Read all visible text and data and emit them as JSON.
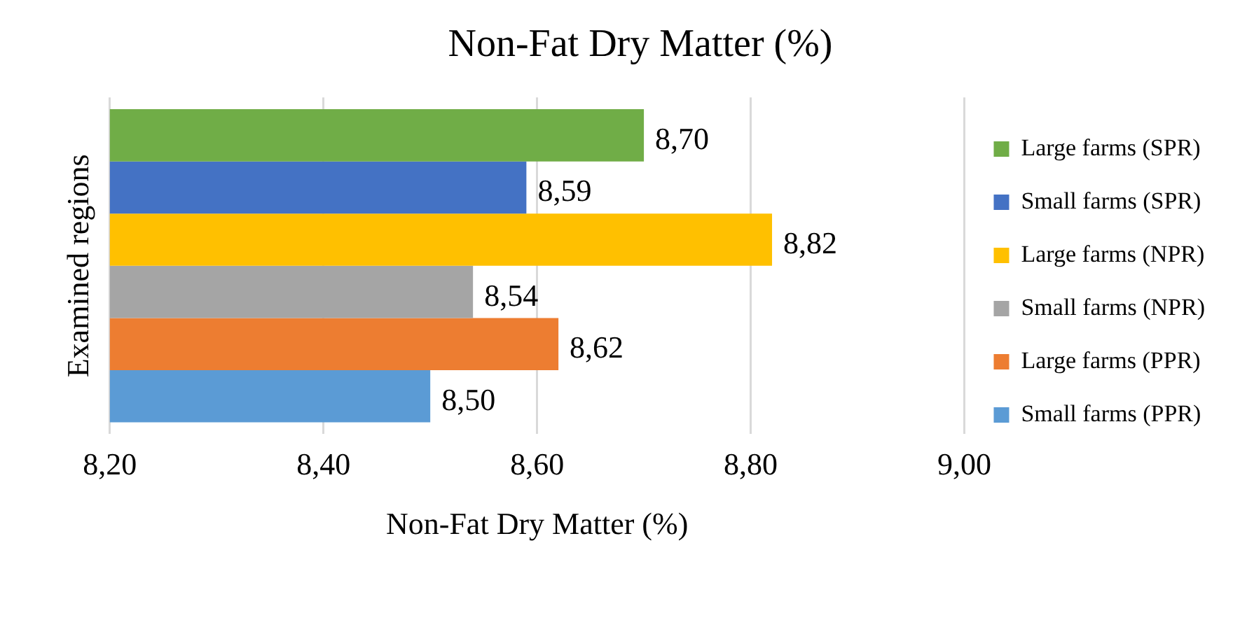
{
  "chart_data": {
    "type": "bar",
    "orientation": "horizontal",
    "title": "Non-Fat Dry Matter (%)",
    "xlabel": "Non-Fat Dry Matter (%)",
    "ylabel": "Examined regions",
    "categories": [
      null
    ],
    "series": [
      {
        "name": "Large farms (SPR)",
        "color": "#70ad47",
        "values": [
          8.7
        ],
        "value_labels": [
          "8,70"
        ]
      },
      {
        "name": "Small farms (SPR)",
        "color": "#4472c4",
        "values": [
          8.59
        ],
        "value_labels": [
          "8,59"
        ]
      },
      {
        "name": "Large farms (NPR)",
        "color": "#ffc000",
        "values": [
          8.82
        ],
        "value_labels": [
          "8,82"
        ]
      },
      {
        "name": "Small farms (NPR)",
        "color": "#a5a5a5",
        "values": [
          8.54
        ],
        "value_labels": [
          "8,54"
        ]
      },
      {
        "name": "Large farms (PPR)",
        "color": "#ed7d31",
        "values": [
          8.62
        ],
        "value_labels": [
          "8,62"
        ]
      },
      {
        "name": "Small farms (PPR)",
        "color": "#5b9bd5",
        "values": [
          8.5
        ],
        "value_labels": [
          "8,50"
        ]
      }
    ],
    "xlim": [
      8.2,
      9.0
    ],
    "xticks": [
      {
        "value": 8.2,
        "label": "8,20"
      },
      {
        "value": 8.4,
        "label": "8,40"
      },
      {
        "value": 8.6,
        "label": "8,60"
      },
      {
        "value": 8.8,
        "label": "8,80"
      },
      {
        "value": 9.0,
        "label": "9,00"
      }
    ],
    "grid": "x",
    "legend": "right",
    "tick_labels": "x"
  }
}
